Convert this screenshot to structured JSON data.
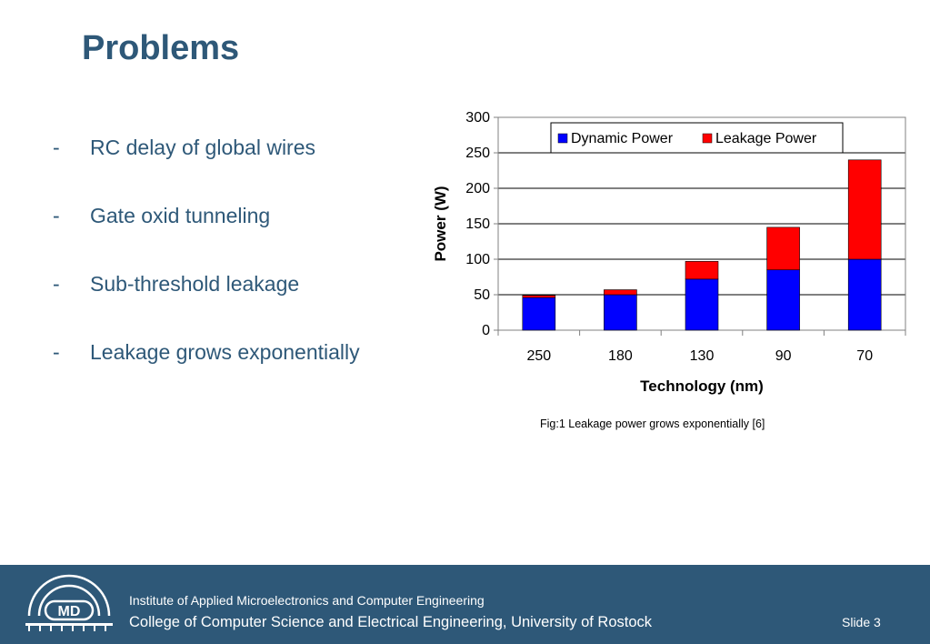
{
  "slide": {
    "title": "Problems",
    "bullets": [
      {
        "dash": "-",
        "text": "RC delay of global wires"
      },
      {
        "dash": "-",
        "text": "Gate oxid tunneling"
      },
      {
        "dash": "-",
        "text": "Sub-threshold leakage"
      },
      {
        "dash": "-",
        "text": "Leakage grows exponentially"
      }
    ],
    "caption": "Fig:1 Leakage power grows exponentially [6]"
  },
  "chart_data": {
    "type": "bar",
    "stacked": true,
    "categories": [
      "250",
      "180",
      "130",
      "90",
      "70"
    ],
    "series": [
      {
        "name": "Dynamic Power",
        "color": "#0000ff",
        "values": [
          46,
          50,
          72,
          85,
          100
        ]
      },
      {
        "name": "Leakage Power",
        "color": "#ff0000",
        "values": [
          3,
          7,
          25,
          60,
          140
        ]
      }
    ],
    "xlabel": "Technology (nm)",
    "ylabel": "Power (W)",
    "ylim": [
      0,
      300
    ],
    "yticks": [
      "0",
      "50",
      "100",
      "150",
      "200",
      "250",
      "300"
    ],
    "grid": true,
    "legend": "top"
  },
  "footer": {
    "logo_text": "MD",
    "institute": "Institute of Applied Microelectronics and Computer Engineering",
    "college": "College of Computer Science and Electrical Engineering, University of Rostock",
    "slide_number": "Slide 3"
  }
}
